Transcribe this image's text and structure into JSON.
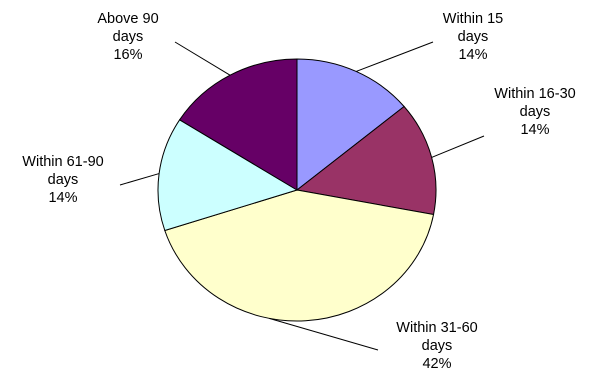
{
  "chart_data": {
    "type": "pie",
    "title": "",
    "slices": [
      {
        "label_lines": [
          "Within 15",
          "days"
        ],
        "percent_label": "14%",
        "value": 14,
        "color": "#9999ff"
      },
      {
        "label_lines": [
          "Within 16-30",
          "days"
        ],
        "percent_label": "14%",
        "value": 14,
        "color": "#993366"
      },
      {
        "label_lines": [
          "Within 31-60",
          "days"
        ],
        "percent_label": "42%",
        "value": 42,
        "color": "#ffffcc"
      },
      {
        "label_lines": [
          "Within 61-90",
          "days"
        ],
        "percent_label": "14%",
        "value": 14,
        "color": "#ccffff"
      },
      {
        "label_lines": [
          "Above 90",
          "days"
        ],
        "percent_label": "16%",
        "value": 16,
        "color": "#660066"
      }
    ],
    "start_direction": "12 o'clock",
    "direction": "clockwise",
    "legend": "none"
  }
}
